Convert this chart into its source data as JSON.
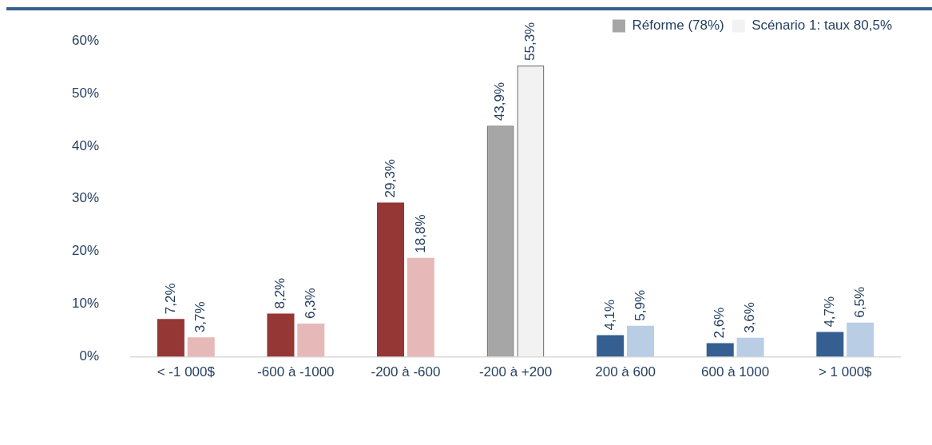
{
  "chart_data": {
    "type": "bar",
    "categories": [
      "< -1 000$",
      "-600 à -1000",
      "-200 à -600",
      "-200 à +200",
      "200 à 600",
      "600 à 1000",
      "> 1 000$"
    ],
    "series": [
      {
        "name": "Réforme (78%)",
        "color": "#a6a6a6",
        "colors": [
          "#953735",
          "#953735",
          "#953735",
          "#a6a6a6",
          "#355f91",
          "#355f91",
          "#355f91"
        ],
        "values": [
          7.2,
          8.2,
          29.3,
          43.9,
          4.1,
          2.6,
          4.7
        ],
        "value_labels": [
          "7,2%",
          "8,2%",
          "29,3%",
          "43,9%",
          "4,1%",
          "2,6%",
          "4,7%"
        ]
      },
      {
        "name": "Scénario 1: taux 80,5%",
        "color": "#f2f2f2",
        "colors": [
          "#e6b9b8",
          "#e6b9b8",
          "#e6b9b8",
          "#f2f2f2",
          "#b9cde5",
          "#b9cde5",
          "#b9cde5"
        ],
        "values": [
          3.7,
          6.3,
          18.8,
          55.3,
          5.9,
          3.6,
          6.5
        ],
        "value_labels": [
          "3,7%",
          "6,3%",
          "18,8%",
          "55,3%",
          "5,9%",
          "3,6%",
          "6,5%"
        ]
      }
    ],
    "ylim": [
      0,
      60
    ],
    "yticks": [
      {
        "value": 0,
        "label": "0%"
      },
      {
        "value": 10,
        "label": "10%"
      },
      {
        "value": 20,
        "label": "20%"
      },
      {
        "value": 30,
        "label": "30%"
      },
      {
        "value": 40,
        "label": "40%"
      },
      {
        "value": 50,
        "label": "50%"
      },
      {
        "value": 60,
        "label": "60%"
      }
    ],
    "grid": false,
    "legend": "top right"
  }
}
